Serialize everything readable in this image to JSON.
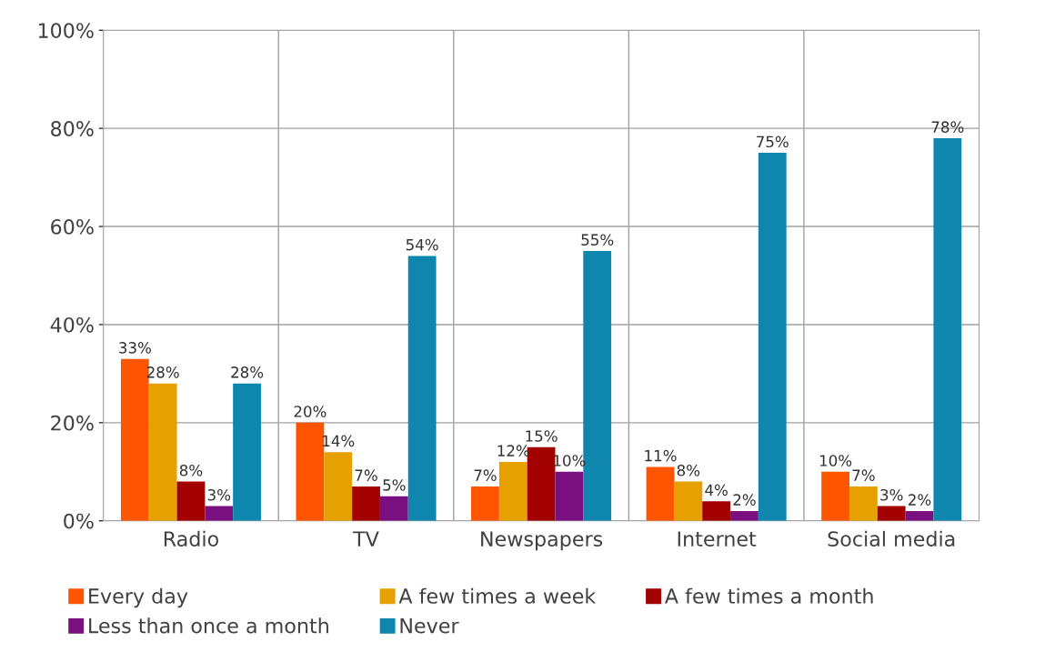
{
  "chart_data": {
    "type": "bar",
    "categories": [
      "Radio",
      "TV",
      "Newspapers",
      "Internet",
      "Social media"
    ],
    "series": [
      {
        "name": "Every day",
        "color": "#ff5400",
        "values": [
          33,
          20,
          7,
          11,
          10
        ],
        "value_labels": [
          "33%",
          "20%",
          "7%",
          "11%",
          "10%"
        ]
      },
      {
        "name": "A few times a week",
        "color": "#e6a000",
        "values": [
          28,
          14,
          12,
          8,
          7
        ],
        "value_labels": [
          "28%",
          "14%",
          "12%",
          "8%",
          "7%"
        ]
      },
      {
        "name": "A few times a month",
        "color": "#a30000",
        "values": [
          8,
          7,
          15,
          4,
          3
        ],
        "value_labels": [
          "8%",
          "7%",
          "15%",
          "4%",
          "3%"
        ]
      },
      {
        "name": "Less than once a month",
        "color": "#7a0f7f",
        "values": [
          3,
          5,
          10,
          2,
          2
        ],
        "value_labels": [
          "3%",
          "5%",
          "10%",
          "2%",
          "2%"
        ]
      },
      {
        "name": "Never",
        "color": "#0f86ad",
        "values": [
          28,
          54,
          55,
          75,
          78
        ],
        "value_labels": [
          "28%",
          "54%",
          "55%",
          "75%",
          "78%"
        ]
      }
    ],
    "ylim": [
      0,
      100
    ],
    "yticks": [
      {
        "value": 0,
        "label": "0%"
      },
      {
        "value": 20,
        "label": "20%"
      },
      {
        "value": 40,
        "label": "40%"
      },
      {
        "value": 60,
        "label": "60%"
      },
      {
        "value": 80,
        "label": "80%"
      },
      {
        "value": 100,
        "label": "100%"
      }
    ],
    "grid": true,
    "legend": "bottom"
  }
}
